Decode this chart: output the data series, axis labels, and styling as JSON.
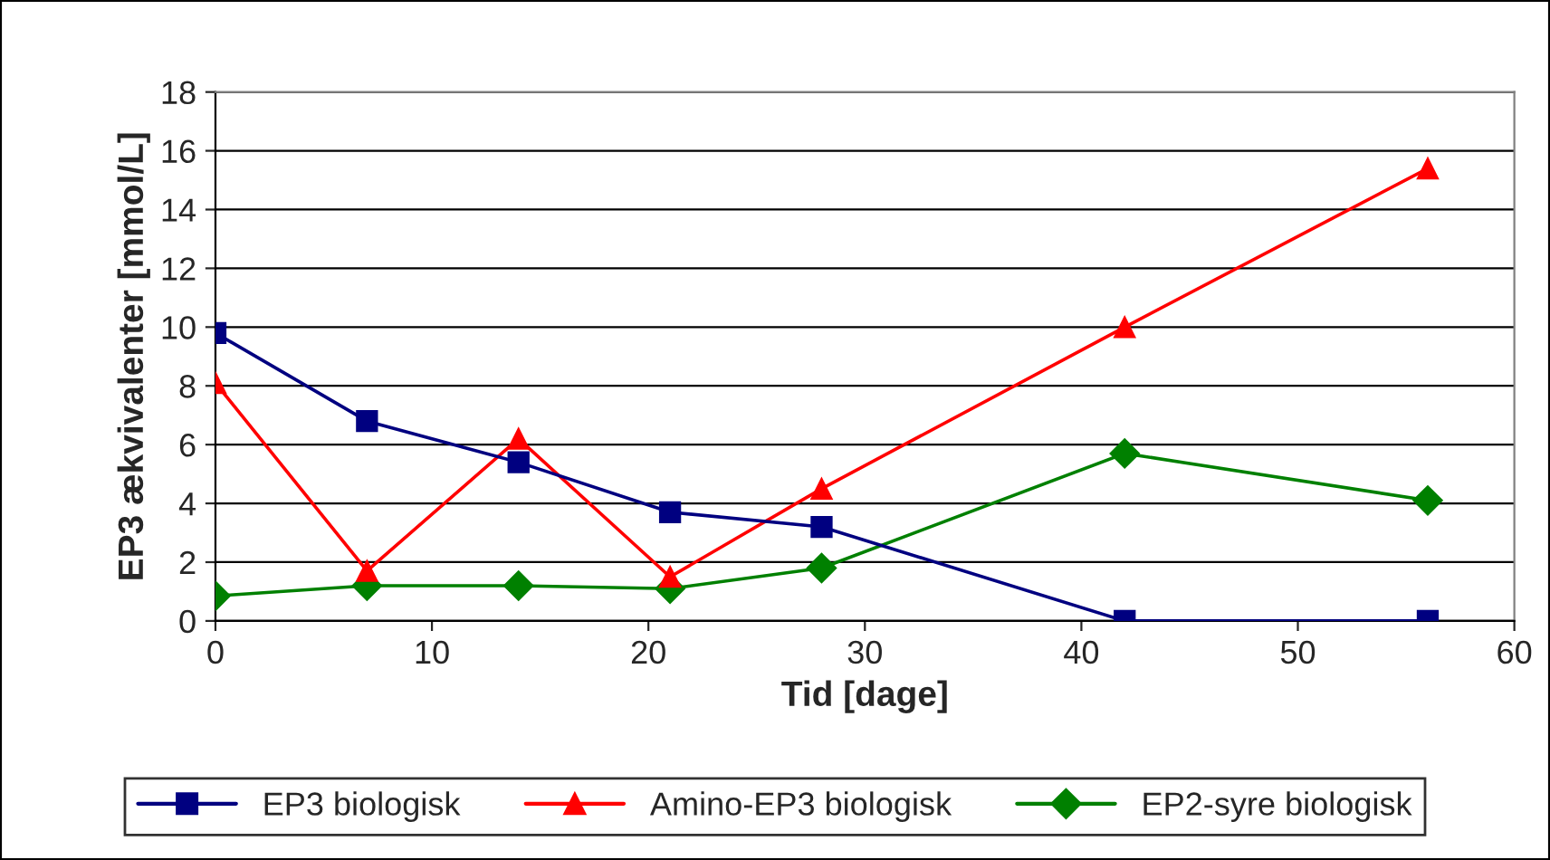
{
  "chart_data": {
    "type": "line",
    "xlabel": "Tid [dage]",
    "ylabel": "EP3 ækvivalenter [mmol/L]",
    "x": [
      0,
      7,
      14,
      21,
      28,
      42,
      56
    ],
    "series": [
      {
        "name": "EP3 biologisk",
        "color": "#000080",
        "marker": "square",
        "values": [
          9.8,
          6.8,
          5.4,
          3.7,
          3.2,
          0,
          0
        ]
      },
      {
        "name": "Amino-EP3 biologisk",
        "color": "#ff0000",
        "marker": "triangle",
        "values": [
          8.1,
          1.7,
          6.2,
          1.5,
          4.5,
          10.0,
          15.4
        ]
      },
      {
        "name": "EP2-syre biologisk",
        "color": "#008000",
        "marker": "diamond",
        "values": [
          0.85,
          1.2,
          1.2,
          1.1,
          1.8,
          5.7,
          4.1
        ]
      }
    ],
    "xlim": [
      0,
      60
    ],
    "xticks": [
      0,
      10,
      20,
      30,
      40,
      50,
      60
    ],
    "ylim": [
      0,
      18
    ],
    "yticks": [
      0,
      2,
      4,
      6,
      8,
      10,
      12,
      14,
      16,
      18
    ],
    "grid": "y",
    "legend": "bottom",
    "line_style": "solid"
  }
}
